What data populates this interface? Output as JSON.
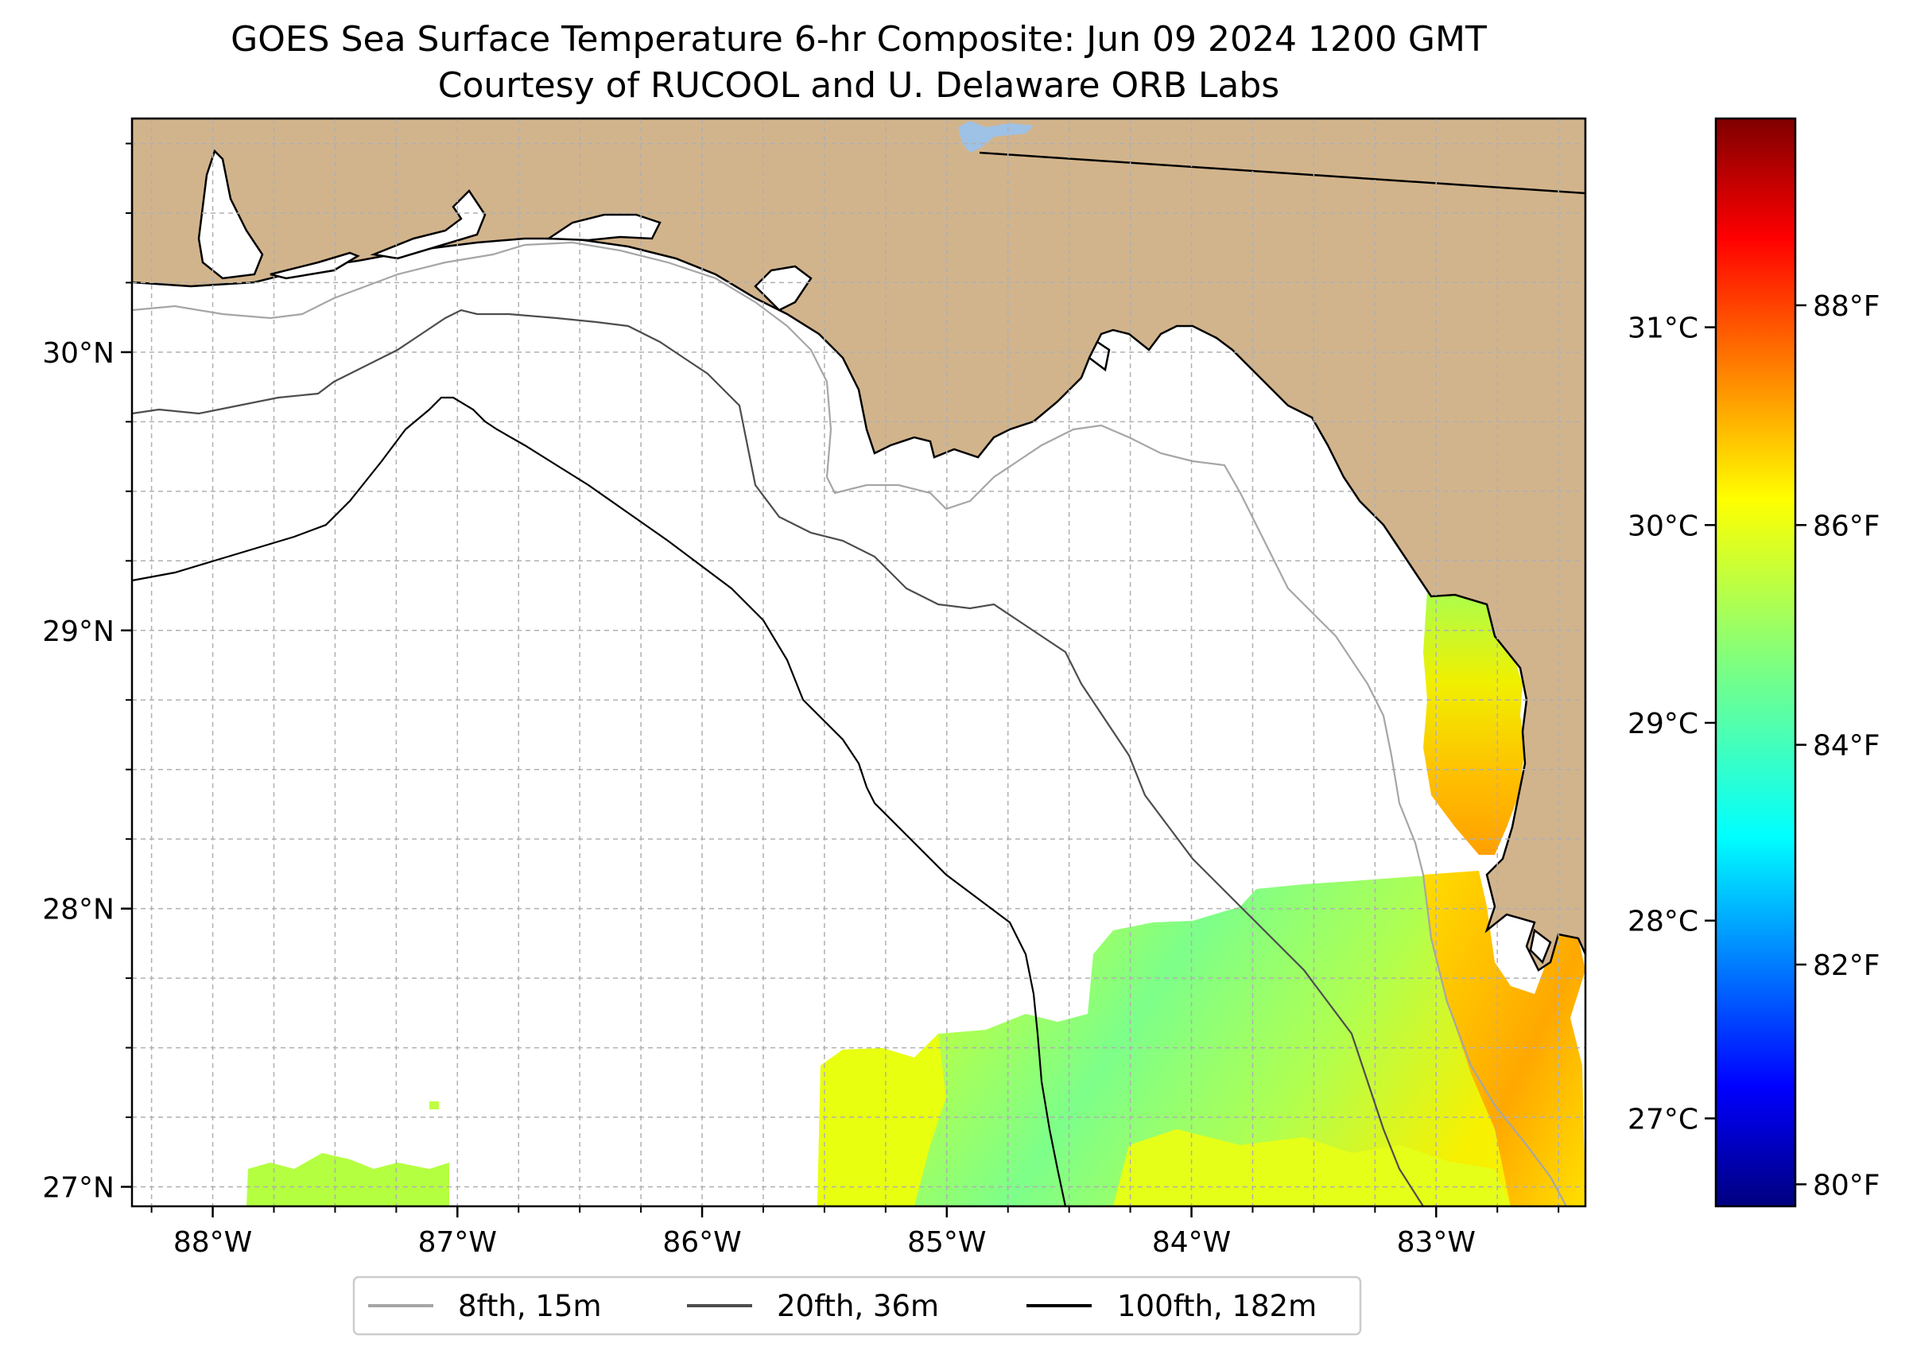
{
  "title": {
    "line1": "GOES Sea Surface Temperature 6-hr Composite: Jun 09 2024 1200 GMT",
    "line2": "Courtesy of RUCOOL and U. Delaware ORB Labs"
  },
  "map": {
    "extent": {
      "lon_min": -88.33,
      "lon_max": -82.39,
      "lat_min": 26.93,
      "lat_max": 30.84
    },
    "latitude_ticks": [
      {
        "value": 30,
        "label": "30°N"
      },
      {
        "value": 29,
        "label": "29°N"
      },
      {
        "value": 28,
        "label": "28°N"
      },
      {
        "value": 27,
        "label": "27°N"
      }
    ],
    "longitude_ticks": [
      {
        "value": -88,
        "label": "88°W"
      },
      {
        "value": -87,
        "label": "87°W"
      },
      {
        "value": -86,
        "label": "86°W"
      },
      {
        "value": -85,
        "label": "85°W"
      },
      {
        "value": -84,
        "label": "84°W"
      },
      {
        "value": -83,
        "label": "83°W"
      }
    ],
    "gridlines": "on, dashed, every 0.25°",
    "land_color": "#d2b48c",
    "water_body_color": "#9ec1e6",
    "contours": [
      {
        "label": "8fth, 15m",
        "color": "#a6a6a6"
      },
      {
        "label": "20fth, 36m",
        "color": "#4d4d4d"
      },
      {
        "label": "100fth, 182m",
        "color": "#000000"
      }
    ],
    "legend_placement": "bottom-center",
    "sst_regions": [
      "Big Bend coast near 29°N, 83.2°W: 85–87 °F",
      "Tampa Bay coast near 27.7°N, 82.7°W: 86–87 °F",
      "Offshore south of 28°N, 83–85°W: 84–85 °F",
      "Near 27.2°N, 85.3°W: 85–86 °F",
      "Near 27°N, 87.5°W: 85 °F"
    ]
  },
  "colorbar": {
    "celsius_ticks": [
      {
        "value": 27,
        "label": "27°C"
      },
      {
        "value": 28,
        "label": "28°C"
      },
      {
        "value": 29,
        "label": "29°C"
      },
      {
        "value": 30,
        "label": "30°C"
      },
      {
        "value": 31,
        "label": "31°C"
      }
    ],
    "fahrenheit_ticks": [
      {
        "value": 80,
        "label": "80°F"
      },
      {
        "value": 82,
        "label": "82°F"
      },
      {
        "value": 84,
        "label": "84°F"
      },
      {
        "value": 86,
        "label": "86°F"
      },
      {
        "value": 88,
        "label": "88°F"
      }
    ],
    "range_f": [
      79.8,
      89.7
    ],
    "colormap": "jet",
    "colors": [
      "#00007f",
      "#0000ff",
      "#007fff",
      "#00ffff",
      "#7fff7f",
      "#ffff00",
      "#ff7f00",
      "#ff0000",
      "#7f0000"
    ]
  }
}
